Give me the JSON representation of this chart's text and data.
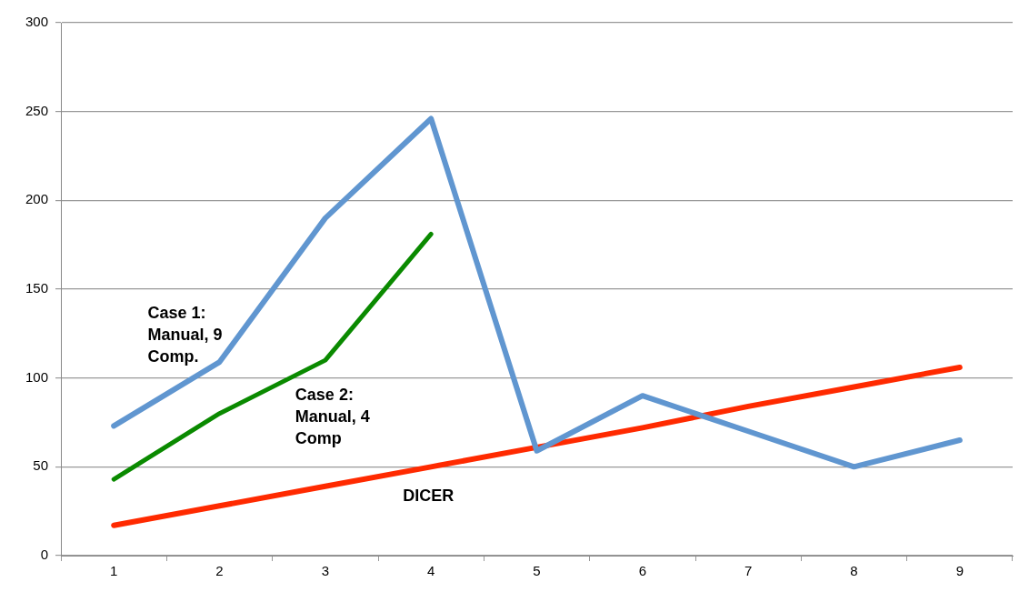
{
  "chart_data": {
    "type": "line",
    "categories": [
      "1",
      "2",
      "3",
      "4",
      "5",
      "6",
      "7",
      "8",
      "9"
    ],
    "series": [
      {
        "name": "Case 1: Manual, 9 Comp.",
        "color": "#6096d0",
        "values": [
          73,
          109,
          190,
          246,
          59,
          90,
          70,
          50,
          65
        ]
      },
      {
        "name": "Case 2: Manual, 4 Comp",
        "color": "#0a8a00",
        "values": [
          43,
          80,
          110,
          181,
          null,
          null,
          null,
          null,
          null
        ]
      },
      {
        "name": "DICER",
        "color": "#ff2a00",
        "values": [
          17,
          28,
          39,
          50,
          61,
          72,
          84,
          95,
          106
        ]
      }
    ],
    "ylim": [
      0,
      300
    ],
    "yticks": [
      0,
      50,
      100,
      150,
      200,
      250,
      300
    ],
    "grid": "y",
    "legend": false,
    "marker": "none",
    "line_style": "solid"
  }
}
